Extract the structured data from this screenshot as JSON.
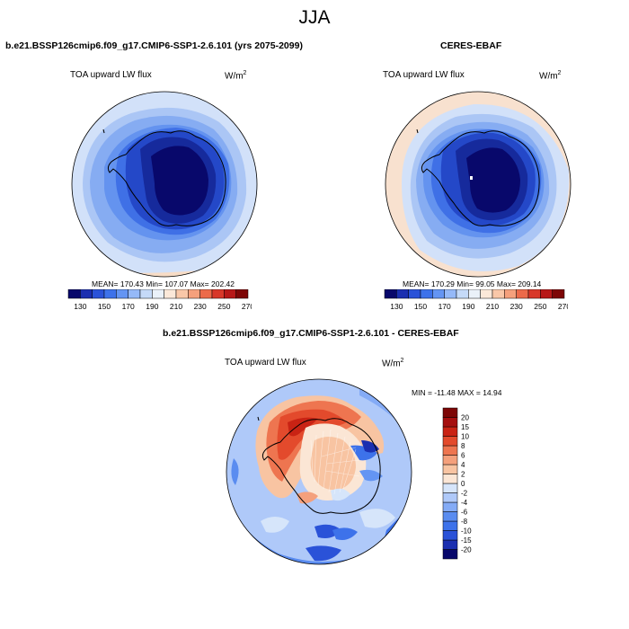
{
  "figure_title": "JJA",
  "panels": [
    {
      "title": "b.e21.BSSP126cmip6.f09_g17.CMIP6-SSP1-2.6.101 (yrs 2075-2099)",
      "variable": "TOA upward LW flux",
      "units_base": "W/m",
      "units_exp": "2",
      "stats": "MEAN= 170.43  Min= 107.07  Max= 202.42"
    },
    {
      "title": "CERES-EBAF",
      "variable": "TOA upward LW flux",
      "units_base": "W/m",
      "units_exp": "2",
      "stats": "MEAN= 170.29  Min=  99.05  Max= 209.14"
    },
    {
      "title": "b.e21.BSSP126cmip6.f09_g17.CMIP6-SSP1-2.6.101 - CERES-EBAF",
      "variable": "TOA upward LW flux",
      "units_base": "W/m",
      "units_exp": "2",
      "stats": "MIN = -11.48 MAX =  14.94"
    }
  ],
  "abs_colorbar": {
    "colors": [
      "#08086b",
      "#1b2fb0",
      "#2a52d8",
      "#3d72ea",
      "#6495f3",
      "#95b9f8",
      "#c5daf8",
      "#eaf1f9",
      "#fbe8d9",
      "#f9c7a8",
      "#f5a07c",
      "#ec6a4a",
      "#d8382a",
      "#b71818",
      "#7d0606"
    ],
    "tick_labels": [
      "130",
      "150",
      "170",
      "190",
      "210",
      "230",
      "250",
      "270"
    ]
  },
  "diff_colorbar": {
    "colors": [
      "#08086b",
      "#1b2fb0",
      "#2a52d8",
      "#3d72ea",
      "#5a8cf0",
      "#84abf6",
      "#afc9f9",
      "#d6e5fa",
      "#fbe6d5",
      "#f8c4a2",
      "#f4a07c",
      "#ee7550",
      "#e34a2c",
      "#c92314",
      "#a50f0f",
      "#7d0606"
    ],
    "tick_labels": [
      "-20",
      "-15",
      "-10",
      "-8",
      "-6",
      "-4",
      "-2",
      "0",
      "2",
      "4",
      "6",
      "8",
      "10",
      "15",
      "20"
    ]
  }
}
